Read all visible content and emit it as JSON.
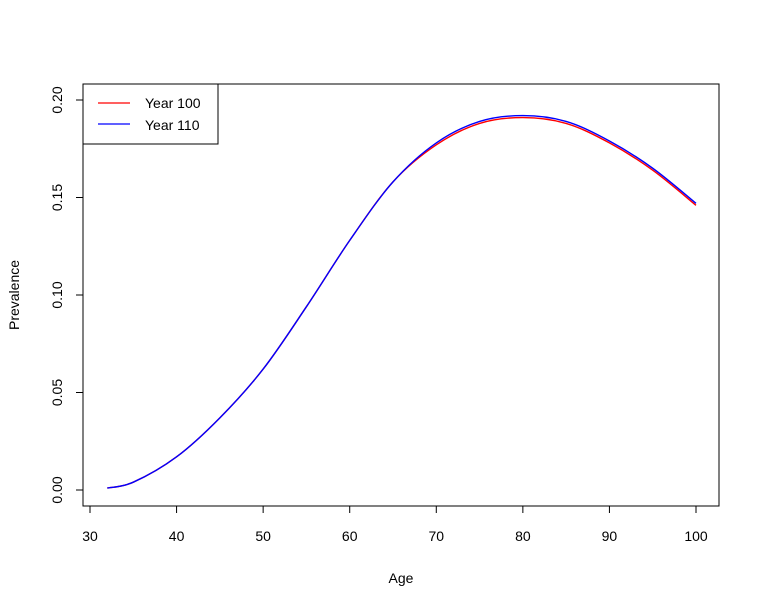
{
  "chart_data": {
    "type": "line",
    "title": "",
    "xlabel": "Age",
    "ylabel": "Prevalence",
    "xlim": [
      30,
      102
    ],
    "ylim": [
      0,
      0.2
    ],
    "xticks": [
      30,
      40,
      50,
      60,
      70,
      80,
      90,
      100
    ],
    "xtick_labels": [
      "30",
      "40",
      "50",
      "60",
      "70",
      "80",
      "90",
      "100"
    ],
    "yticks": [
      0,
      0.05,
      0.1,
      0.15,
      0.2
    ],
    "ytick_labels": [
      "0.00",
      "0.05",
      "0.10",
      "0.15",
      "0.20"
    ],
    "grid": false,
    "legend_position": "top-left",
    "x": [
      32,
      35,
      40,
      45,
      50,
      55,
      60,
      65,
      70,
      75,
      80,
      85,
      90,
      95,
      100
    ],
    "series": [
      {
        "name": "Year 100",
        "color": "#ff0000",
        "values": [
          0.001,
          0.004,
          0.017,
          0.037,
          0.062,
          0.094,
          0.128,
          0.158,
          0.177,
          0.188,
          0.191,
          0.188,
          0.178,
          0.164,
          0.146
        ]
      },
      {
        "name": "Year 110",
        "color": "#0000ff",
        "values": [
          0.001,
          0.004,
          0.017,
          0.037,
          0.062,
          0.094,
          0.128,
          0.158,
          0.178,
          0.189,
          0.192,
          0.189,
          0.179,
          0.165,
          0.147
        ]
      }
    ]
  }
}
